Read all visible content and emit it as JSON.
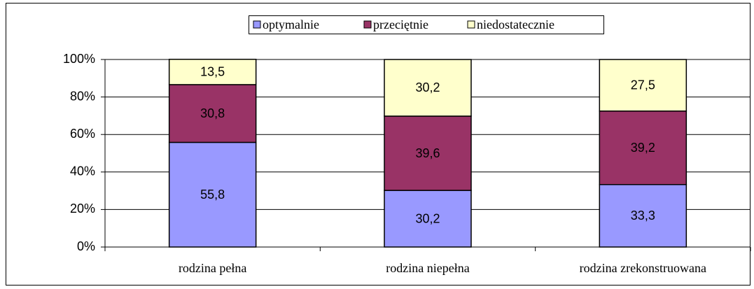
{
  "chart_data": {
    "type": "bar",
    "stacked": true,
    "categories": [
      "rodzina pełna",
      "rodzina niepełna",
      "rodzina zrekonstruowana"
    ],
    "series": [
      {
        "name": "optymalnie",
        "color": "#9999ff",
        "values": [
          55.8,
          30.2,
          33.3
        ],
        "value_labels": [
          "55,8",
          "30,2",
          "33,3"
        ]
      },
      {
        "name": "przeciętnie",
        "color": "#993366",
        "values": [
          30.8,
          39.6,
          39.2
        ],
        "value_labels": [
          "30,8",
          "39,6",
          "39,2"
        ]
      },
      {
        "name": "niedostatecznie",
        "color": "#ffffcc",
        "values": [
          13.5,
          30.2,
          27.5
        ],
        "value_labels": [
          "13,5",
          "30,2",
          "27,5"
        ]
      }
    ],
    "ylim": [
      0,
      100
    ],
    "yticks": [
      {
        "value": 0,
        "label": "0%"
      },
      {
        "value": 20,
        "label": "20%"
      },
      {
        "value": 40,
        "label": "40%"
      },
      {
        "value": 60,
        "label": "60%"
      },
      {
        "value": 80,
        "label": "80%"
      },
      {
        "value": 100,
        "label": "100%"
      }
    ],
    "grid": true,
    "legend": "top"
  }
}
